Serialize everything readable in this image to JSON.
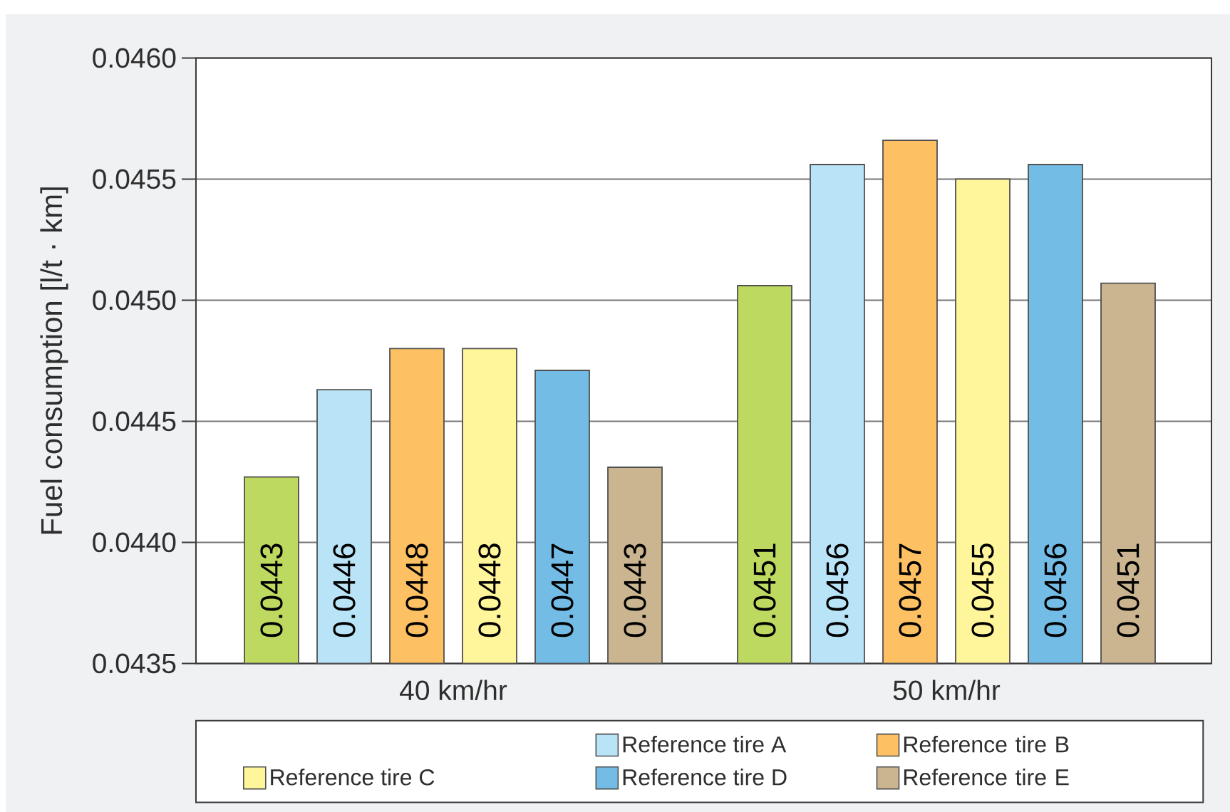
{
  "chart_data": {
    "type": "bar",
    "ylabel": "Fuel consumption [l/t · km]",
    "categories": [
      "40 km/hr",
      "50 km/hr"
    ],
    "series": [
      {
        "color": "#bed95f",
        "values": [
          0.04427,
          0.04506
        ],
        "value_labels": [
          "0.0443",
          "0.0451"
        ]
      },
      {
        "name": "Reference tire A",
        "color": "#b9e4f8",
        "values": [
          0.04463,
          0.04556
        ],
        "value_labels": [
          "0.0446",
          "0.0456"
        ]
      },
      {
        "name": "Reference tire B",
        "color": "#fdc062",
        "values": [
          0.0448,
          0.04566
        ],
        "value_labels": [
          "0.0448",
          "0.0457"
        ]
      },
      {
        "name": "Reference tire C",
        "color": "#fff59a",
        "values": [
          0.0448,
          0.0455
        ],
        "value_labels": [
          "0.0448",
          "0.0455"
        ]
      },
      {
        "name": "Reference tire D",
        "color": "#73bce6",
        "values": [
          0.04471,
          0.04556
        ],
        "value_labels": [
          "0.0447",
          "0.0456"
        ]
      },
      {
        "name": "Reference tire E",
        "color": "#cbb591",
        "values": [
          0.04431,
          0.04507
        ],
        "value_labels": [
          "0.0443",
          "0.0451"
        ]
      }
    ],
    "ylim": [
      0.0435,
      0.046
    ],
    "yticks": [
      0.0435,
      {
        "value": 0.044,
        "label": "0.0440"
      },
      0.0445,
      {
        "value": 0.045,
        "label": "0.0450"
      },
      0.0455,
      {
        "value": 0.046,
        "label": "0.0460"
      }
    ],
    "grid": "y",
    "legend": "bottom"
  }
}
